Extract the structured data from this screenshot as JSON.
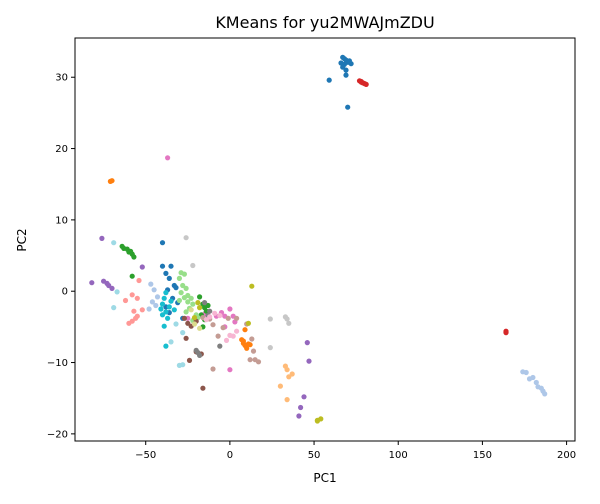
{
  "chart_data": {
    "type": "scatter",
    "title": "KMeans for yu2MWAJmZDU",
    "xlabel": "PC1",
    "ylabel": "PC2",
    "xlim": [
      -92,
      205
    ],
    "ylim": [
      -21,
      35.5
    ],
    "xticks": [
      -50,
      0,
      50,
      100,
      150,
      200
    ],
    "yticks": [
      -20,
      -10,
      0,
      10,
      20,
      30
    ],
    "xtick_labels": [
      "−50",
      "0",
      "50",
      "100",
      "150",
      "200"
    ],
    "ytick_labels": [
      "−20",
      "−10",
      "0",
      "10",
      "20",
      "30"
    ],
    "grid": false,
    "legend": "none",
    "clusters": [
      {
        "color": "#1f77b4",
        "points": [
          [
            67,
            32.8
          ],
          [
            68,
            32.6
          ],
          [
            69,
            32.4
          ],
          [
            70,
            32.1
          ],
          [
            68,
            31.8
          ],
          [
            67,
            31.4
          ],
          [
            69,
            31.0
          ],
          [
            71,
            32.3
          ],
          [
            72,
            31.9
          ],
          [
            66,
            32.0
          ],
          [
            59,
            29.6
          ],
          [
            69,
            30.3
          ],
          [
            70,
            25.8
          ],
          [
            -40,
            6.8
          ],
          [
            -40,
            3.5
          ],
          [
            -38,
            2.5
          ],
          [
            -35,
            3.5
          ],
          [
            -36,
            1.8
          ],
          [
            -33,
            0.8
          ],
          [
            -37,
            0.2
          ],
          [
            -34,
            -1.0
          ],
          [
            -31,
            -1.6
          ],
          [
            -38,
            -2.2
          ],
          [
            -36,
            -3.0
          ],
          [
            -28,
            -3.8
          ],
          [
            -32,
            0.5
          ]
        ]
      },
      {
        "color": "#d62728",
        "points": [
          [
            77,
            29.5
          ],
          [
            78,
            29.4
          ],
          [
            79,
            29.2
          ],
          [
            80,
            29.1
          ],
          [
            81,
            29.0
          ],
          [
            78,
            29.3
          ],
          [
            164,
            -5.6
          ],
          [
            164,
            -5.8
          ]
        ]
      },
      {
        "color": "#ff7f0e",
        "points": [
          [
            -70,
            15.5
          ],
          [
            -71,
            15.4
          ],
          [
            7,
            -6.8
          ],
          [
            8,
            -7.3
          ],
          [
            9,
            -7.6
          ],
          [
            10,
            -8.0
          ],
          [
            11,
            -7.4
          ],
          [
            8,
            -7.0
          ],
          [
            12,
            -7.5
          ],
          [
            9,
            -5.4
          ]
        ]
      },
      {
        "color": "#e377c2",
        "points": [
          [
            -37,
            18.7
          ],
          [
            -25,
            -3.8
          ],
          [
            -15,
            -3.2
          ],
          [
            -5,
            -3.0
          ],
          [
            -3,
            -3.5
          ],
          [
            0,
            -2.5
          ],
          [
            2,
            -3.5
          ],
          [
            3,
            -4.3
          ],
          [
            -8,
            -3.5
          ],
          [
            0,
            -11.0
          ],
          [
            -3,
            -5.0
          ]
        ]
      },
      {
        "color": "#2ca02c",
        "points": [
          [
            -64,
            6.3
          ],
          [
            -63,
            6.0
          ],
          [
            -61,
            5.9
          ],
          [
            -60,
            5.5
          ],
          [
            -59,
            5.6
          ],
          [
            -58,
            5.2
          ],
          [
            -57,
            4.8
          ],
          [
            -58,
            2.1
          ],
          [
            -16,
            -1.8
          ],
          [
            -15,
            -2.3
          ],
          [
            -14,
            -2.8
          ],
          [
            -17,
            -3.3
          ],
          [
            -15,
            -4.0
          ],
          [
            -18,
            -0.8
          ],
          [
            -13,
            -2.0
          ],
          [
            -16,
            -5.0
          ]
        ]
      },
      {
        "color": "#9467bd",
        "points": [
          [
            -76,
            7.4
          ],
          [
            -82,
            1.2
          ],
          [
            -75,
            1.4
          ],
          [
            -73,
            1.1
          ],
          [
            -72,
            0.8
          ],
          [
            -70,
            0.4
          ],
          [
            -52,
            3.4
          ],
          [
            46,
            -7.2
          ],
          [
            47,
            -9.8
          ],
          [
            44,
            -14.8
          ],
          [
            42,
            -16.3
          ],
          [
            41,
            -17.5
          ]
        ]
      },
      {
        "color": "#aec7e8",
        "points": [
          [
            -47,
            1.0
          ],
          [
            -45,
            0.2
          ],
          [
            -43,
            -0.8
          ],
          [
            -46,
            -1.5
          ],
          [
            -44,
            -2.0
          ],
          [
            -48,
            -2.5
          ],
          [
            174,
            -11.3
          ],
          [
            176,
            -11.4
          ],
          [
            178,
            -12.3
          ],
          [
            180,
            -12.1
          ],
          [
            182,
            -12.8
          ],
          [
            183,
            -13.4
          ],
          [
            185,
            -13.6
          ],
          [
            186,
            -14.0
          ],
          [
            187,
            -14.4
          ]
        ]
      },
      {
        "color": "#ffbb78",
        "points": [
          [
            30,
            -13.3
          ],
          [
            33,
            -10.5
          ],
          [
            34,
            -11.0
          ],
          [
            35,
            -12.0
          ],
          [
            37,
            -11.6
          ],
          [
            34,
            -15.2
          ]
        ]
      },
      {
        "color": "#ff9896",
        "points": [
          [
            -62,
            -1.3
          ],
          [
            -58,
            -0.5
          ],
          [
            -55,
            -1.0
          ],
          [
            -57,
            -2.8
          ],
          [
            -55,
            -3.5
          ],
          [
            -58,
            -4.2
          ],
          [
            -60,
            -4.5
          ],
          [
            -52,
            -2.6
          ],
          [
            -56,
            -3.8
          ],
          [
            -54,
            1.5
          ]
        ]
      },
      {
        "color": "#98df8a",
        "points": [
          [
            -29,
            2.6
          ],
          [
            -27,
            2.4
          ],
          [
            -30,
            1.8
          ],
          [
            -28,
            0.8
          ],
          [
            -26,
            0.4
          ],
          [
            -29,
            -0.2
          ],
          [
            -27,
            -0.9
          ],
          [
            -30,
            -1.3
          ],
          [
            -25,
            -1.5
          ],
          [
            -22,
            -1.8
          ],
          [
            -24,
            -2.4
          ],
          [
            -26,
            -2.9
          ],
          [
            -20,
            -3.3
          ],
          [
            -22,
            -4.1
          ],
          [
            -19,
            -3.7
          ],
          [
            -23,
            -1.0
          ],
          [
            -25,
            -0.6
          ]
        ]
      },
      {
        "color": "#17becf",
        "points": [
          [
            -38,
            -0.2
          ],
          [
            -39,
            -1.0
          ],
          [
            -40,
            -1.8
          ],
          [
            -41,
            -2.5
          ],
          [
            -40,
            -3.3
          ],
          [
            -38,
            -2.9
          ],
          [
            -36,
            -2.2
          ],
          [
            -37,
            -3.8
          ],
          [
            -39,
            -4.9
          ],
          [
            -35,
            -1.4
          ],
          [
            -33,
            -2.6
          ],
          [
            -38,
            -7.7
          ]
        ]
      },
      {
        "color": "#9edae5",
        "points": [
          [
            -69,
            6.8
          ],
          [
            -67,
            -0.1
          ],
          [
            -69,
            -2.3
          ],
          [
            -35,
            -7.1
          ],
          [
            -32,
            -4.6
          ],
          [
            -28,
            -5.8
          ],
          [
            -28,
            -10.3
          ],
          [
            -30,
            -10.4
          ]
        ]
      },
      {
        "color": "#8c564b",
        "points": [
          [
            -27,
            -3.8
          ],
          [
            -25,
            -4.5
          ],
          [
            -23,
            -4.9
          ],
          [
            -26,
            -6.6
          ],
          [
            -24,
            -9.7
          ],
          [
            -20,
            -8.5
          ],
          [
            -17,
            -8.8
          ],
          [
            -20,
            -4.2
          ],
          [
            -16,
            -13.6
          ]
        ]
      },
      {
        "color": "#c49c94",
        "points": [
          [
            -16,
            -3.7
          ],
          [
            -12,
            -3.9
          ],
          [
            -10,
            -4.7
          ],
          [
            -7,
            -6.3
          ],
          [
            -4,
            -5.1
          ],
          [
            -1,
            -3.8
          ],
          [
            4,
            -3.8
          ],
          [
            10,
            -4.6
          ],
          [
            13,
            -6.7
          ],
          [
            14,
            -8.4
          ],
          [
            12,
            -9.6
          ],
          [
            15,
            -9.6
          ],
          [
            17,
            -9.9
          ],
          [
            -10,
            -10.9
          ]
        ]
      },
      {
        "color": "#7f7f7f",
        "points": [
          [
            -15,
            -1.6
          ],
          [
            -12,
            -2.8
          ],
          [
            -13,
            -3.4
          ],
          [
            -6,
            -7.7
          ],
          [
            -20,
            -8.3
          ],
          [
            -19,
            -8.6
          ],
          [
            -18,
            -9.0
          ]
        ]
      },
      {
        "color": "#c7c7c7",
        "points": [
          [
            -26,
            7.5
          ],
          [
            -22,
            3.6
          ],
          [
            33,
            -3.6
          ],
          [
            34,
            -3.9
          ],
          [
            35,
            -4.5
          ],
          [
            24,
            -3.9
          ],
          [
            24,
            -7.9
          ]
        ]
      },
      {
        "color": "#bcbd22",
        "points": [
          [
            -19,
            -1.6
          ],
          [
            -18,
            -2.3
          ],
          [
            -21,
            -3.7
          ],
          [
            11,
            -4.5
          ],
          [
            13,
            0.7
          ],
          [
            52,
            -18.1
          ],
          [
            54,
            -17.9
          ],
          [
            52,
            -18.2
          ]
        ]
      },
      {
        "color": "#dbdb8d",
        "points": [
          [
            -21,
            -4.6
          ],
          [
            -18,
            -5.2
          ],
          [
            -23,
            -2.6
          ]
        ]
      },
      {
        "color": "#f7b6d2",
        "points": [
          [
            -14,
            -4.0
          ],
          [
            -12,
            -3.6
          ],
          [
            -9,
            -3.1
          ],
          [
            -6,
            -3.4
          ],
          [
            0,
            -6.2
          ],
          [
            -2,
            -6.9
          ],
          [
            4,
            -5.6
          ],
          [
            2,
            -6.3
          ]
        ]
      }
    ]
  }
}
